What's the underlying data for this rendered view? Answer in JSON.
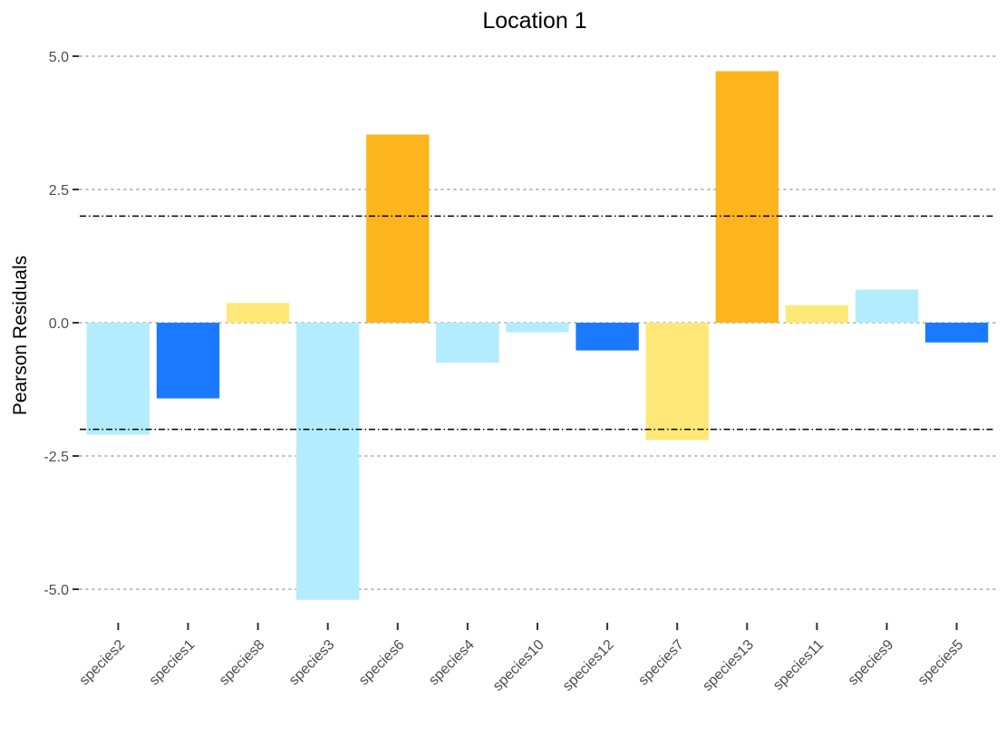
{
  "chart_data": {
    "type": "bar",
    "title": "Location 1",
    "xlabel": "",
    "ylabel": "Pearson Residuals",
    "ylim": [
      -5.5,
      5.0
    ],
    "yticks": [
      5.0,
      2.5,
      0.0,
      -2.5,
      -5.0
    ],
    "ytick_labels": [
      "5.0",
      "2.5",
      "0.0",
      "-2.5",
      "-5.0"
    ],
    "grid": "horizontal dotted at y ticks",
    "reference_lines": [
      2,
      -2
    ],
    "legend": "none",
    "categories": [
      "species2",
      "species1",
      "species8",
      "species3",
      "species6",
      "species4",
      "species10",
      "species12",
      "species7",
      "species13",
      "species11",
      "species9",
      "species5"
    ],
    "values": [
      -2.1,
      -1.42,
      0.37,
      -5.2,
      3.53,
      -0.75,
      -0.18,
      -0.52,
      -2.2,
      4.72,
      0.33,
      0.62,
      -0.37
    ],
    "colors": [
      "#b3ecff",
      "#1a7aff",
      "#ffe877",
      "#b3ecff",
      "#fcb51d",
      "#b3ecff",
      "#b3ecff",
      "#1a7aff",
      "#ffe877",
      "#fcb51d",
      "#ffe877",
      "#b3ecff",
      "#1a7aff"
    ]
  }
}
